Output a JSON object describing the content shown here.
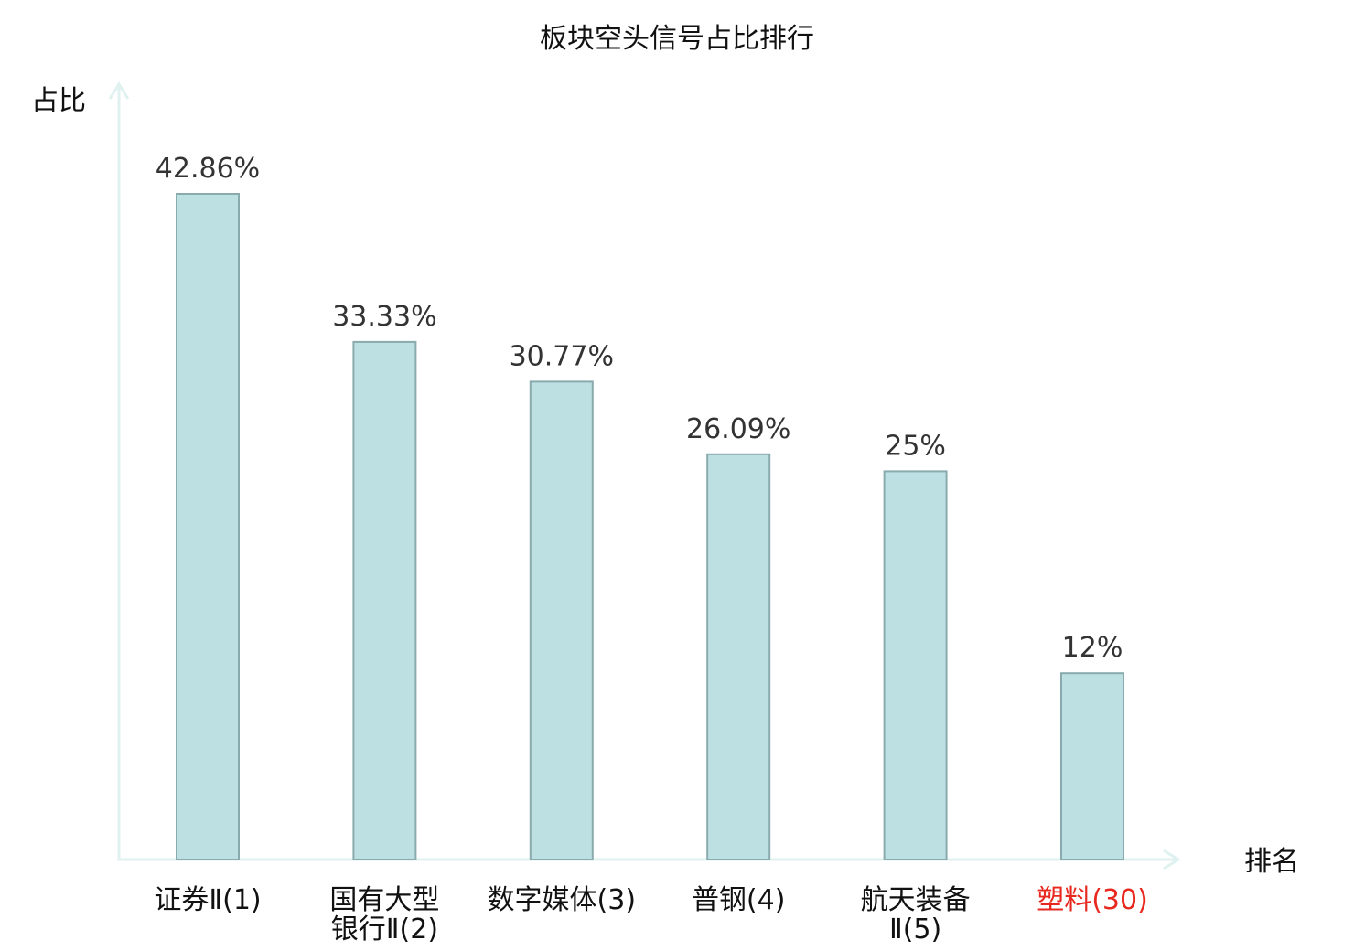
{
  "chart_data": {
    "type": "bar",
    "title": "板块空头信号占比排行",
    "ylabel": "占比",
    "xlabel": "排名",
    "ylim": [
      0,
      50
    ],
    "grid": false,
    "categories": [
      {
        "name_lines": [
          "证券Ⅱ(1)"
        ],
        "highlight": false
      },
      {
        "name_lines": [
          "国有大型",
          "银行Ⅱ(2)"
        ],
        "highlight": false
      },
      {
        "name_lines": [
          "数字媒体(3)"
        ],
        "highlight": false
      },
      {
        "name_lines": [
          "普钢(4)"
        ],
        "highlight": false
      },
      {
        "name_lines": [
          "航天装备",
          "Ⅱ(5)"
        ],
        "highlight": false
      },
      {
        "name_lines": [
          "塑料(30)"
        ],
        "highlight": true
      }
    ],
    "values": [
      42.86,
      33.33,
      30.77,
      26.09,
      25,
      12
    ],
    "value_labels": [
      "42.86%",
      "33.33%",
      "30.77%",
      "26.09%",
      "25%",
      "12%"
    ],
    "colors": {
      "bar_fill": "#bde0e3",
      "bar_stroke": "#8aabad",
      "axis": "#dff2ef",
      "highlight": "#e8281e"
    }
  }
}
